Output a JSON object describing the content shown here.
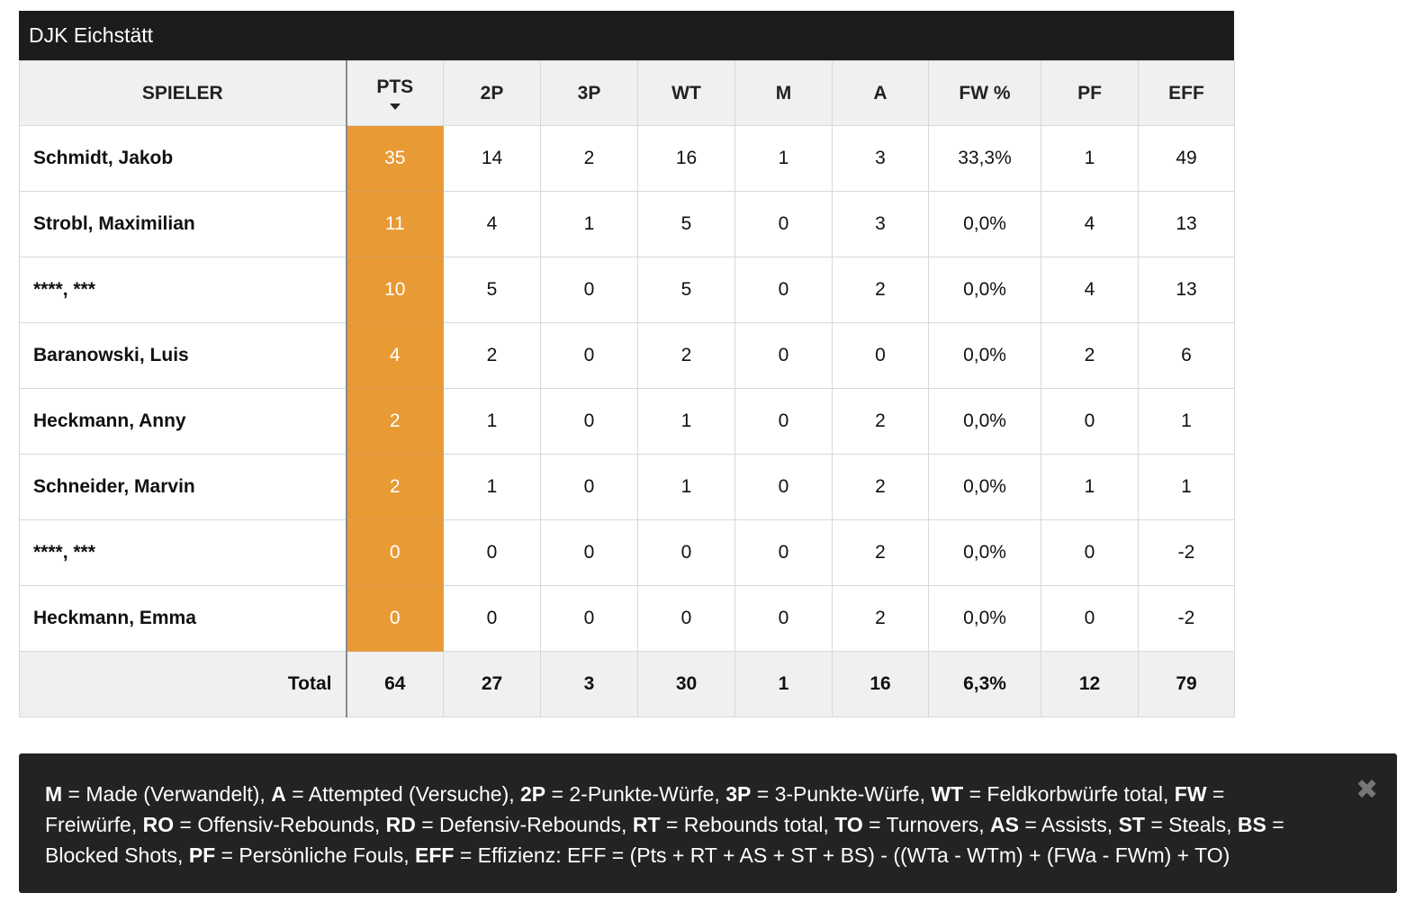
{
  "team": {
    "name": "DJK Eichstätt"
  },
  "table": {
    "headers": {
      "spieler": "SPIELER",
      "pts": "PTS",
      "p2": "2P",
      "p3": "3P",
      "wt": "WT",
      "m": "M",
      "a": "A",
      "fw": "FW %",
      "pf": "PF",
      "eff": "EFF"
    },
    "sorted_column": "PTS",
    "sort_direction": "descending",
    "rows": [
      {
        "name": "Schmidt, Jakob",
        "pts": "35",
        "p2": "14",
        "p3": "2",
        "wt": "16",
        "m": "1",
        "a": "3",
        "fw": "33,3%",
        "pf": "1",
        "eff": "49"
      },
      {
        "name": "Strobl, Maximilian",
        "pts": "11",
        "p2": "4",
        "p3": "1",
        "wt": "5",
        "m": "0",
        "a": "3",
        "fw": "0,0%",
        "pf": "4",
        "eff": "13"
      },
      {
        "name": "****, ***",
        "pts": "10",
        "p2": "5",
        "p3": "0",
        "wt": "5",
        "m": "0",
        "a": "2",
        "fw": "0,0%",
        "pf": "4",
        "eff": "13"
      },
      {
        "name": "Baranowski, Luis",
        "pts": "4",
        "p2": "2",
        "p3": "0",
        "wt": "2",
        "m": "0",
        "a": "0",
        "fw": "0,0%",
        "pf": "2",
        "eff": "6"
      },
      {
        "name": "Heckmann, Anny",
        "pts": "2",
        "p2": "1",
        "p3": "0",
        "wt": "1",
        "m": "0",
        "a": "2",
        "fw": "0,0%",
        "pf": "0",
        "eff": "1"
      },
      {
        "name": "Schneider, Marvin",
        "pts": "2",
        "p2": "1",
        "p3": "0",
        "wt": "1",
        "m": "0",
        "a": "2",
        "fw": "0,0%",
        "pf": "1",
        "eff": "1"
      },
      {
        "name": "****, ***",
        "pts": "0",
        "p2": "0",
        "p3": "0",
        "wt": "0",
        "m": "0",
        "a": "2",
        "fw": "0,0%",
        "pf": "0",
        "eff": "-2"
      },
      {
        "name": "Heckmann, Emma",
        "pts": "0",
        "p2": "0",
        "p3": "0",
        "wt": "0",
        "m": "0",
        "a": "2",
        "fw": "0,0%",
        "pf": "0",
        "eff": "-2"
      }
    ],
    "total": {
      "label": "Total",
      "pts": "64",
      "p2": "27",
      "p3": "3",
      "wt": "30",
      "m": "1",
      "a": "16",
      "fw": "6,3%",
      "pf": "12",
      "eff": "79"
    }
  },
  "legend": {
    "entries": [
      {
        "abbr": "M",
        "text": " = Made (Verwandelt), "
      },
      {
        "abbr": "A",
        "text": " = Attempted (Versuche), "
      },
      {
        "abbr": "2P",
        "text": " = 2-Punkte-Würfe, "
      },
      {
        "abbr": "3P",
        "text": " = 3-Punkte-Würfe, "
      },
      {
        "abbr": "WT",
        "text": " = Feldkorbwürfe total, "
      },
      {
        "abbr": "FW",
        "text": " = Freiwürfe, "
      },
      {
        "abbr": "RO",
        "text": " = Offensiv-Rebounds, "
      },
      {
        "abbr": "RD",
        "text": " = Defensiv-Rebounds, "
      },
      {
        "abbr": "RT",
        "text": " = Rebounds total, "
      },
      {
        "abbr": "TO",
        "text": " = Turnovers, "
      },
      {
        "abbr": "AS",
        "text": " = Assists, "
      },
      {
        "abbr": "ST",
        "text": " = Steals, "
      },
      {
        "abbr": "BS",
        "text": " = Blocked Shots, "
      },
      {
        "abbr": "PF",
        "text": " = Persönliche Fouls, "
      },
      {
        "abbr": "EFF",
        "text": " = Effizienz: EFF = (Pts + RT + AS + ST + BS) - ((WTa - WTm) + (FWa - FWm) + TO)"
      }
    ],
    "close_icon": "close-icon",
    "close_glyph": "✖"
  },
  "colors": {
    "header_bar": "#1c1c1c",
    "pts_highlight": "#e89a35",
    "legend_bg": "#232323"
  }
}
